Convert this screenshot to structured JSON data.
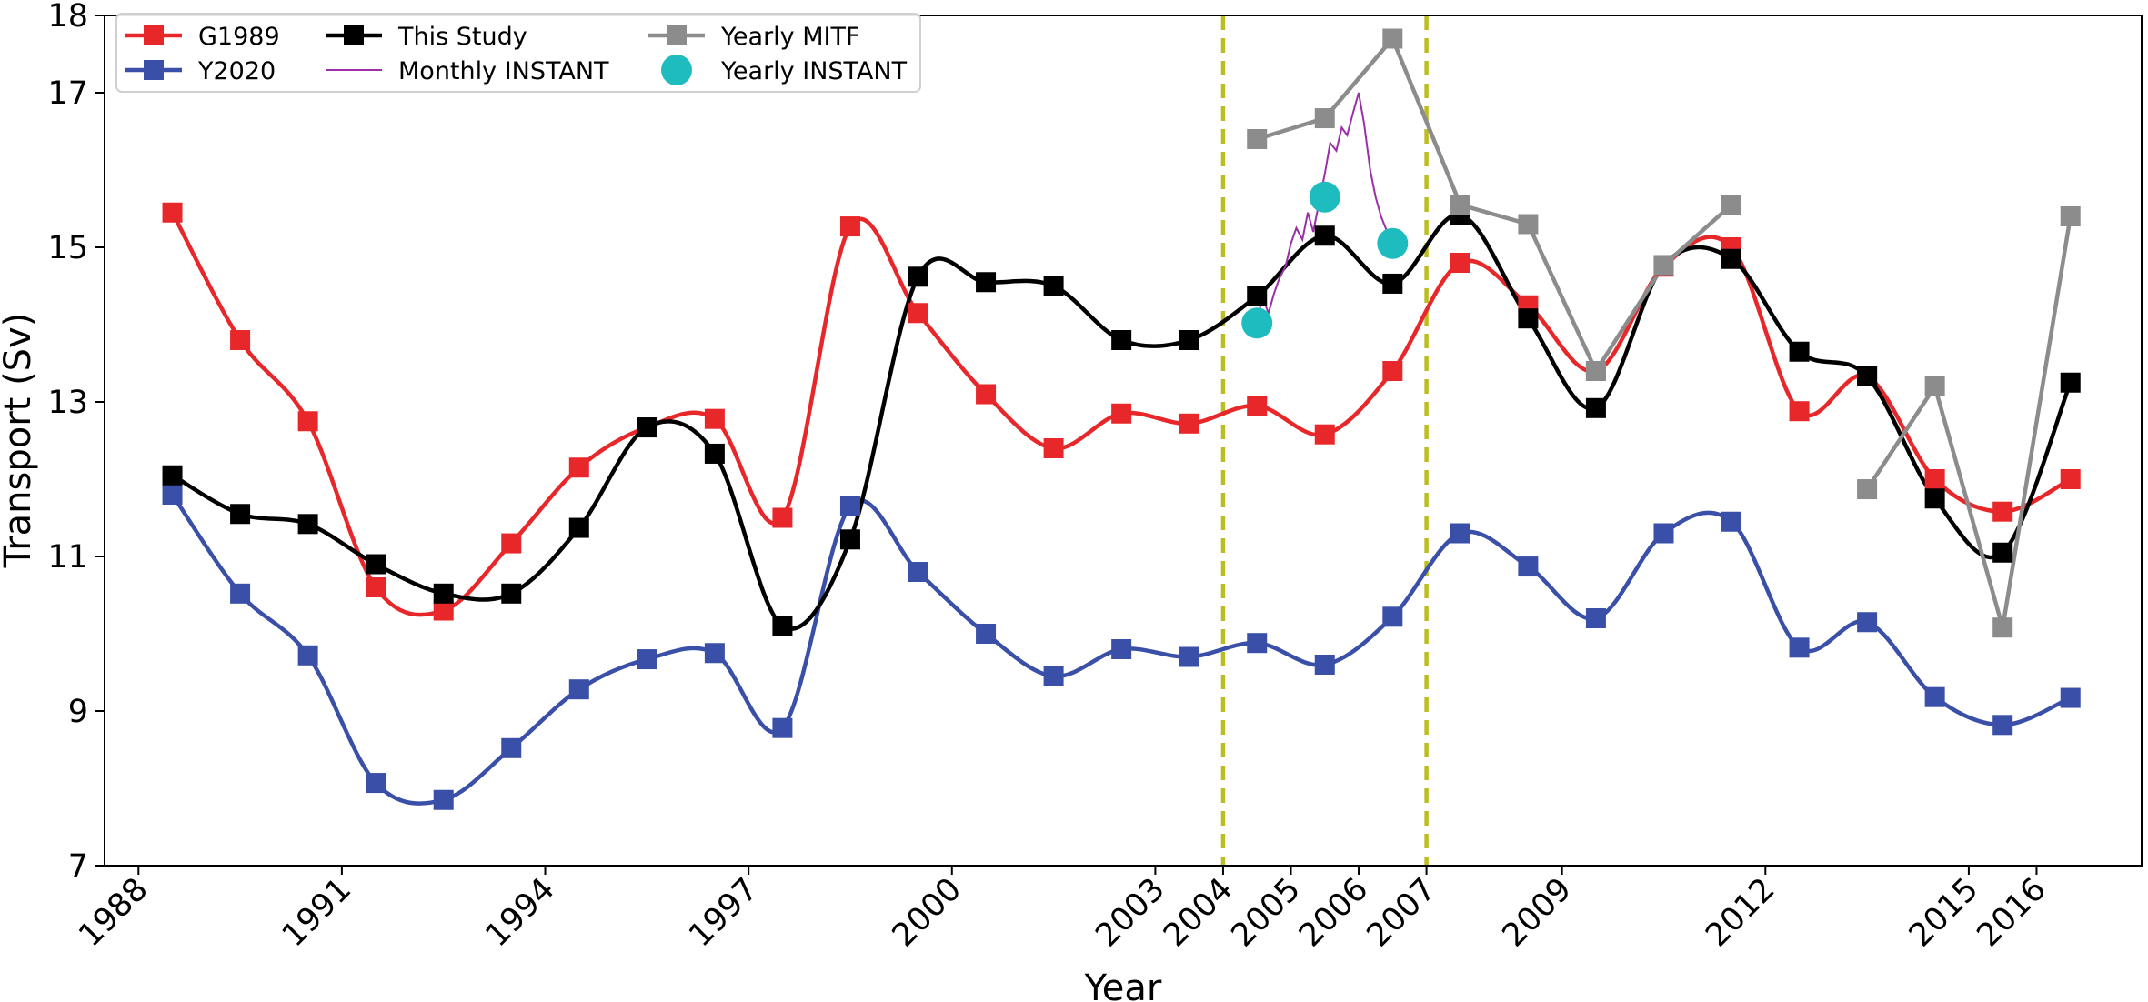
{
  "chart_data": {
    "type": "line",
    "xlabel": "Year",
    "ylabel": "Transport (Sv)",
    "xlim": [
      1987.5,
      2017.55
    ],
    "ylim": [
      7,
      18
    ],
    "x_ticks": [
      {
        "value": 1988,
        "label": "1988"
      },
      {
        "value": 1991,
        "label": "1991"
      },
      {
        "value": 1994,
        "label": "1994"
      },
      {
        "value": 1997,
        "label": "1997"
      },
      {
        "value": 2000,
        "label": "2000"
      },
      {
        "value": 2003,
        "label": "2003"
      },
      {
        "value": 2004,
        "label": "2004"
      },
      {
        "value": 2005,
        "label": "2005"
      },
      {
        "value": 2006,
        "label": "2006"
      },
      {
        "value": 2007,
        "label": "2007"
      },
      {
        "value": 2009,
        "label": "2009"
      },
      {
        "value": 2012,
        "label": "2012"
      },
      {
        "value": 2015,
        "label": "2015"
      },
      {
        "value": 2016,
        "label": "2016"
      }
    ],
    "y_ticks": [
      {
        "value": 7,
        "label": "7"
      },
      {
        "value": 9,
        "label": "9"
      },
      {
        "value": 11,
        "label": "11"
      },
      {
        "value": 13,
        "label": "13"
      },
      {
        "value": 15,
        "label": "15"
      },
      {
        "value": 17,
        "label": "17"
      },
      {
        "value": 18,
        "label": "18"
      }
    ],
    "vlines": [
      {
        "x": 2004.0,
        "color": "#bcbd22"
      },
      {
        "x": 2007.0,
        "color": "#bcbd22"
      }
    ],
    "legend_position": "upper-left",
    "series": [
      {
        "name": "G1989",
        "color": "#e8272a",
        "style": "smooth-square",
        "x": [
          1988.5,
          1989.5,
          1990.5,
          1991.5,
          1992.5,
          1993.5,
          1994.5,
          1995.5,
          1996.5,
          1997.5,
          1998.5,
          1999.5,
          2000.5,
          2001.5,
          2002.5,
          2003.5,
          2004.5,
          2005.5,
          2006.5,
          2007.5,
          2008.5,
          2009.5,
          2010.5,
          2011.5,
          2012.5,
          2013.5,
          2014.5,
          2015.5,
          2016.5
        ],
        "y": [
          15.45,
          13.8,
          12.75,
          10.6,
          10.3,
          11.17,
          12.15,
          12.67,
          12.78,
          11.5,
          15.27,
          14.15,
          13.1,
          12.4,
          12.85,
          12.72,
          12.95,
          12.58,
          13.4,
          14.8,
          14.25,
          13.4,
          14.75,
          15.0,
          12.88,
          13.33,
          12.0,
          11.58,
          12.0
        ]
      },
      {
        "name": "Y2020",
        "color": "#3a4fa8",
        "style": "smooth-square",
        "x": [
          1988.5,
          1989.5,
          1990.5,
          1991.5,
          1992.5,
          1993.5,
          1994.5,
          1995.5,
          1996.5,
          1997.5,
          1998.5,
          1999.5,
          2000.5,
          2001.5,
          2002.5,
          2003.5,
          2004.5,
          2005.5,
          2006.5,
          2007.5,
          2008.5,
          2009.5,
          2010.5,
          2011.5,
          2012.5,
          2013.5,
          2014.5,
          2015.5,
          2016.5
        ],
        "y": [
          11.8,
          10.52,
          9.72,
          8.07,
          7.85,
          8.52,
          9.28,
          9.67,
          9.75,
          8.78,
          11.65,
          10.8,
          10.0,
          9.45,
          9.8,
          9.7,
          9.88,
          9.6,
          10.22,
          11.3,
          10.87,
          10.2,
          11.3,
          11.45,
          9.82,
          10.15,
          9.18,
          8.82,
          9.17
        ]
      },
      {
        "name": "This Study",
        "color": "#000000",
        "style": "smooth-square",
        "x": [
          1988.5,
          1989.5,
          1990.5,
          1991.5,
          1992.5,
          1993.5,
          1994.5,
          1995.5,
          1996.5,
          1997.5,
          1998.5,
          1999.5,
          2000.5,
          2001.5,
          2002.5,
          2003.5,
          2004.5,
          2005.5,
          2006.5,
          2007.5,
          2008.5,
          2009.5,
          2010.5,
          2011.5,
          2012.5,
          2013.5,
          2014.5,
          2015.5,
          2016.5
        ],
        "y": [
          12.05,
          11.55,
          11.42,
          10.9,
          10.52,
          10.52,
          11.37,
          12.67,
          12.33,
          10.1,
          11.22,
          14.62,
          14.55,
          14.5,
          13.8,
          13.8,
          14.37,
          15.15,
          14.53,
          15.42,
          14.08,
          12.92,
          14.77,
          14.85,
          13.65,
          13.33,
          11.75,
          11.05,
          13.25
        ]
      },
      {
        "name": "Monthly INSTANT",
        "color": "#9b2fa8",
        "style": "thin-line",
        "x": [
          2004.5,
          2004.58,
          2004.67,
          2004.75,
          2004.83,
          2004.92,
          2005.0,
          2005.08,
          2005.17,
          2005.25,
          2005.33,
          2005.42,
          2005.5,
          2005.58,
          2005.67,
          2005.75,
          2005.83,
          2005.92,
          2006.0,
          2006.08,
          2006.17,
          2006.25,
          2006.33,
          2006.42
        ],
        "y": [
          14.05,
          14.35,
          14.15,
          14.4,
          14.6,
          14.75,
          15.05,
          15.25,
          15.1,
          15.45,
          15.2,
          15.6,
          15.95,
          16.35,
          16.25,
          16.55,
          16.45,
          16.75,
          17.0,
          16.6,
          16.0,
          15.65,
          15.4,
          15.2
        ]
      },
      {
        "name": "Yearly MITF",
        "color": "#8c8c8c",
        "style": "straight-square",
        "segments": [
          {
            "x": [
              2004.5,
              2005.5,
              2006.5,
              2007.5,
              2008.5,
              2009.5,
              2010.5,
              2011.5
            ],
            "y": [
              16.4,
              16.67,
              17.7,
              15.55,
              15.3,
              13.4,
              14.77,
              15.55
            ]
          },
          {
            "x": [
              2013.5,
              2014.5,
              2015.5,
              2016.5
            ],
            "y": [
              11.87,
              13.2,
              10.08,
              15.4
            ]
          }
        ]
      },
      {
        "name": "Yearly INSTANT",
        "color": "#1fbcbf",
        "style": "circle",
        "x": [
          2004.5,
          2005.5,
          2006.5
        ],
        "y": [
          14.02,
          15.65,
          15.05
        ]
      }
    ]
  }
}
